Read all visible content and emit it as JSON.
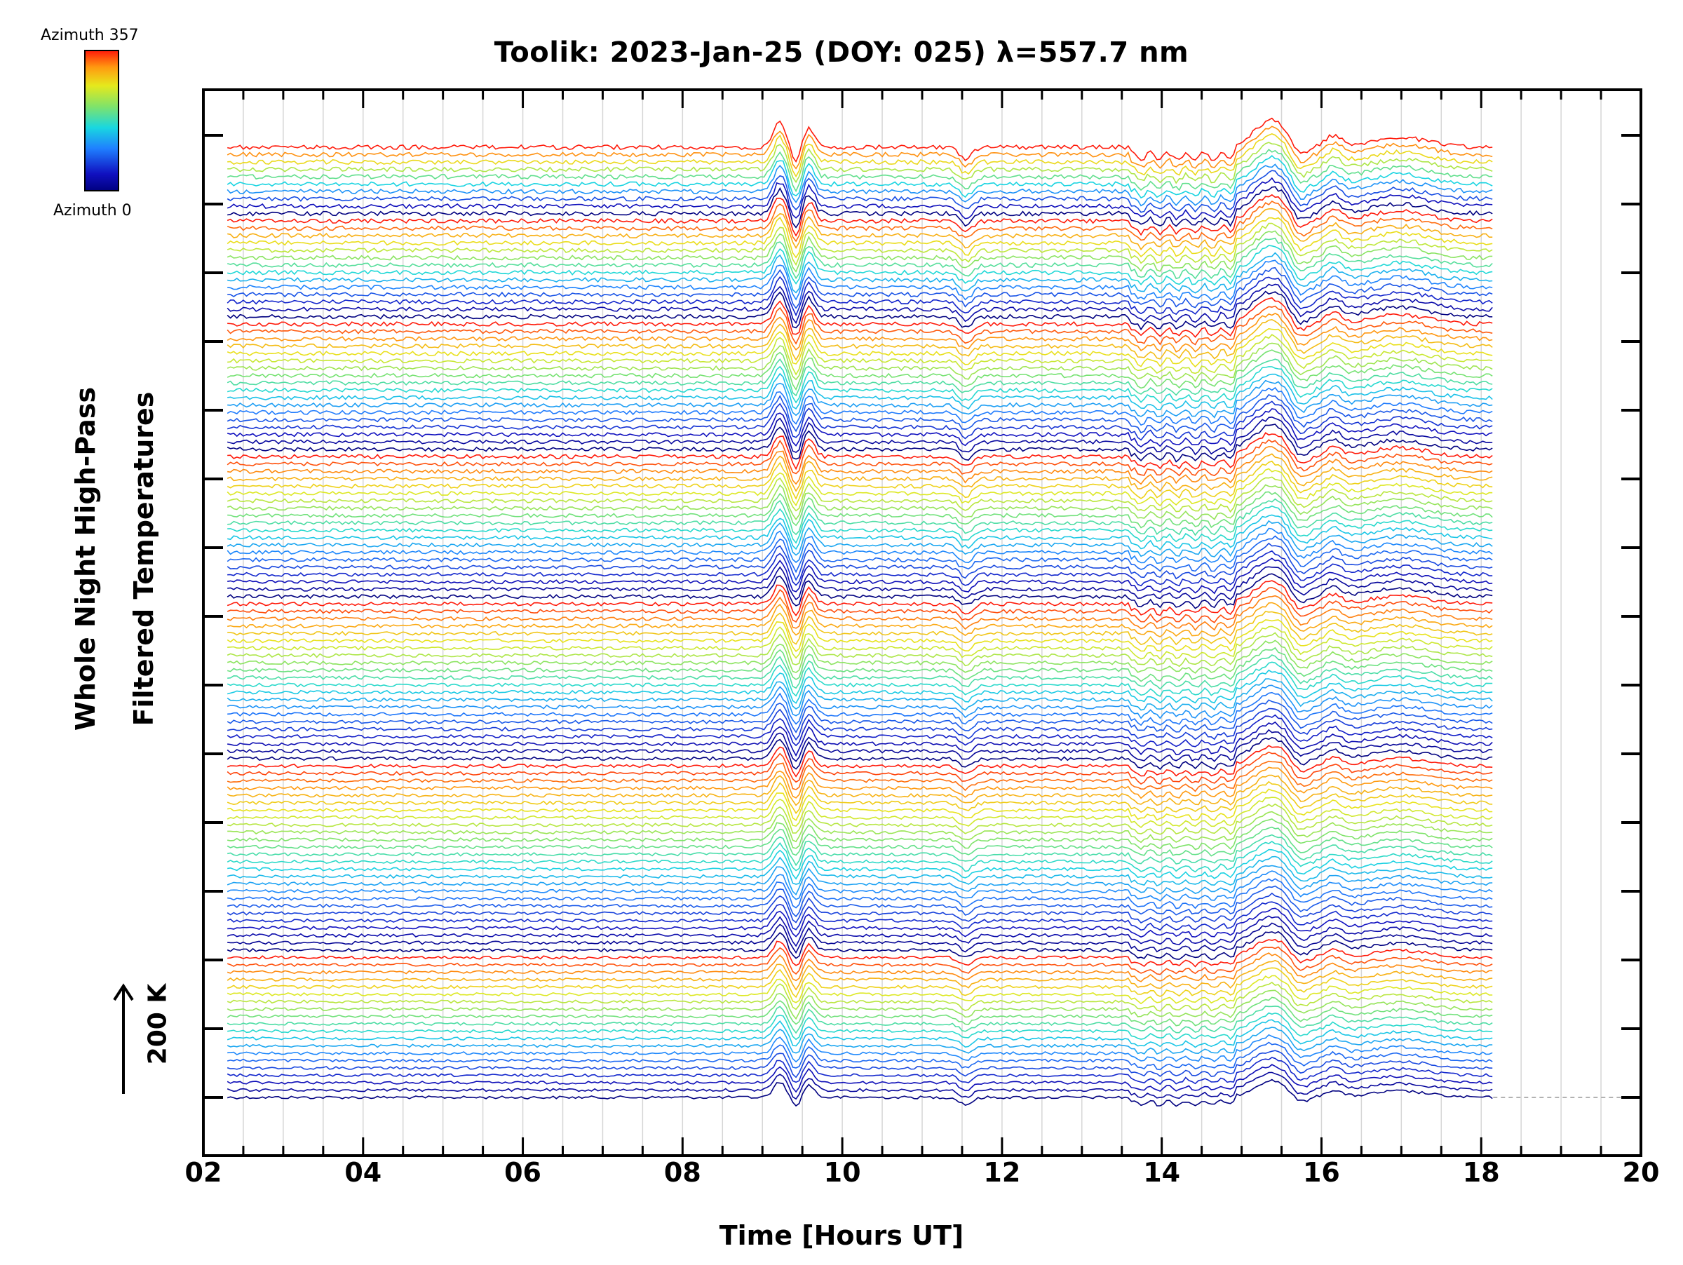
{
  "chart_data": {
    "type": "line",
    "title": "Toolik: 2023-Jan-25 (DOY: 025) λ=557.7 nm",
    "xlabel": "Time [Hours UT]",
    "ylabel_lines": [
      "Whole Night High-Pass",
      "Filtered Temperatures"
    ],
    "scale_bar_label": "200 K",
    "colorbar": {
      "top_label": "Azimuth 357",
      "bottom_label": "Azimuth 0"
    },
    "xlim": [
      2,
      20
    ],
    "x_tick_labels": [
      "02",
      "04",
      "06",
      "08",
      "10",
      "12",
      "14",
      "16",
      "18",
      "20"
    ],
    "x_data_range": [
      2.3,
      18.15
    ],
    "grid": true,
    "series_count": 130,
    "azimuth_range": [
      0,
      357
    ]
  }
}
